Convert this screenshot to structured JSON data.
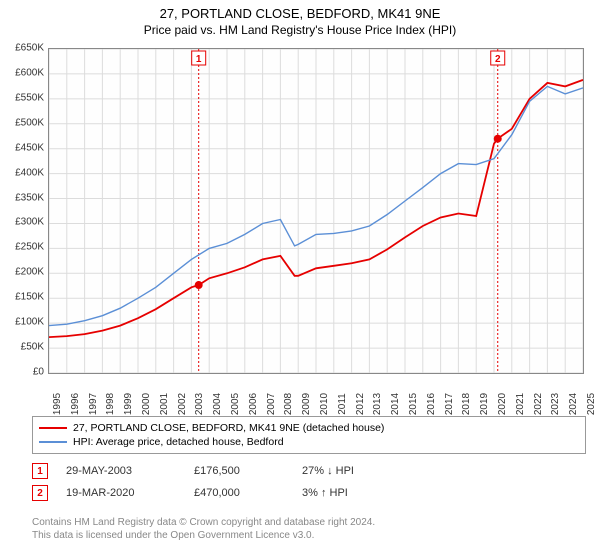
{
  "title_line1": "27, PORTLAND CLOSE, BEDFORD, MK41 9NE",
  "title_line2": "Price paid vs. HM Land Registry's House Price Index (HPI)",
  "chart": {
    "type": "line",
    "background_color": "#ffffff",
    "grid_color": "#dcdcdc",
    "border_color": "#888888",
    "ylim": [
      0,
      650000
    ],
    "ytick_step": 50000,
    "ytick_labels": [
      "£0",
      "£50K",
      "£100K",
      "£150K",
      "£200K",
      "£250K",
      "£300K",
      "£350K",
      "£400K",
      "£450K",
      "£500K",
      "£550K",
      "£600K",
      "£650K"
    ],
    "xlim": [
      1995,
      2025
    ],
    "xtick_step": 1,
    "xtick_labels": [
      "1995",
      "1996",
      "1997",
      "1998",
      "1999",
      "2000",
      "2001",
      "2002",
      "2003",
      "2004",
      "2005",
      "2006",
      "2007",
      "2008",
      "2009",
      "2010",
      "2011",
      "2012",
      "2013",
      "2014",
      "2015",
      "2016",
      "2017",
      "2018",
      "2019",
      "2020",
      "2021",
      "2022",
      "2023",
      "2024",
      "2025"
    ],
    "series": [
      {
        "name": "price_paid",
        "label": "27, PORTLAND CLOSE, BEDFORD, MK41 9NE (detached house)",
        "color": "#e60000",
        "line_width": 1.8,
        "x": [
          1995,
          1996,
          1997,
          1998,
          1999,
          2000,
          2001,
          2002,
          2003,
          2003.41,
          2004,
          2005,
          2006,
          2007,
          2008,
          2008.8,
          2009,
          2010,
          2011,
          2012,
          2013,
          2014,
          2015,
          2016,
          2017,
          2018,
          2019,
          2020,
          2020.21,
          2021,
          2022,
          2023,
          2024,
          2025
        ],
        "y": [
          72000,
          74000,
          78000,
          85000,
          95000,
          110000,
          128000,
          150000,
          172000,
          176500,
          190000,
          200000,
          212000,
          228000,
          235000,
          195000,
          195000,
          210000,
          215000,
          220000,
          228000,
          248000,
          272000,
          295000,
          312000,
          320000,
          315000,
          460000,
          470000,
          490000,
          550000,
          582000,
          575000,
          588000
        ]
      },
      {
        "name": "hpi",
        "label": "HPI: Average price, detached house, Bedford",
        "color": "#5b8fd6",
        "line_width": 1.4,
        "x": [
          1995,
          1996,
          1997,
          1998,
          1999,
          2000,
          2001,
          2002,
          2003,
          2004,
          2005,
          2006,
          2007,
          2008,
          2008.8,
          2009,
          2010,
          2011,
          2012,
          2013,
          2014,
          2015,
          2016,
          2017,
          2018,
          2019,
          2020,
          2021,
          2022,
          2023,
          2024,
          2025
        ],
        "y": [
          95000,
          98000,
          105000,
          115000,
          130000,
          150000,
          172000,
          200000,
          228000,
          250000,
          260000,
          278000,
          300000,
          308000,
          255000,
          258000,
          278000,
          280000,
          285000,
          295000,
          318000,
          345000,
          372000,
          400000,
          420000,
          418000,
          430000,
          478000,
          545000,
          575000,
          560000,
          572000
        ]
      }
    ],
    "markers": [
      {
        "id": "1",
        "x": 2003.41,
        "y": 176500,
        "date": "29-MAY-2003",
        "price": "£176,500",
        "delta": "27% ↓ HPI",
        "line_color": "#e60000"
      },
      {
        "id": "2",
        "x": 2020.21,
        "y": 470000,
        "date": "19-MAR-2020",
        "price": "£470,000",
        "delta": "3% ↑ HPI",
        "line_color": "#e60000"
      }
    ],
    "marker_dot_color": "#e60000",
    "marker_line_dash": "2,2"
  },
  "legend": {
    "rows": [
      {
        "color": "#e60000",
        "label": "27, PORTLAND CLOSE, BEDFORD, MK41 9NE (detached house)"
      },
      {
        "color": "#5b8fd6",
        "label": "HPI: Average price, detached house, Bedford"
      }
    ]
  },
  "footer_line1": "Contains HM Land Registry data © Crown copyright and database right 2024.",
  "footer_line2": "This data is licensed under the Open Government Licence v3.0."
}
